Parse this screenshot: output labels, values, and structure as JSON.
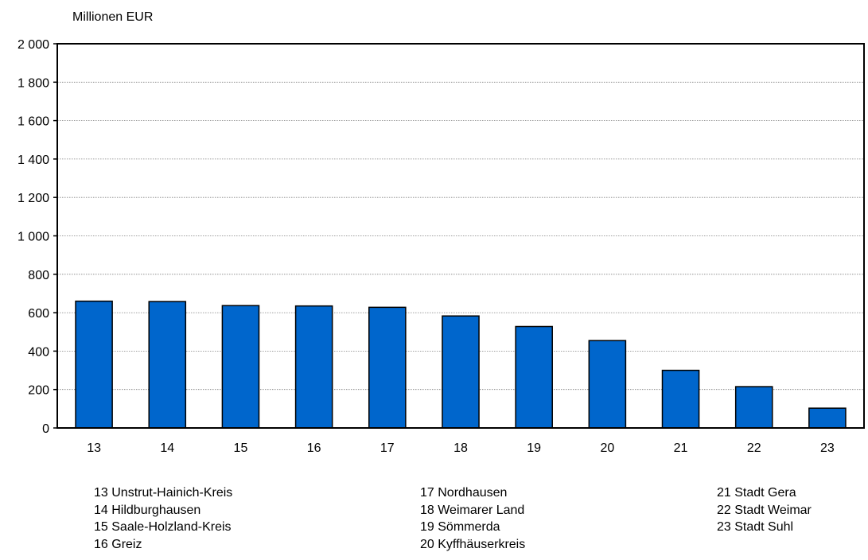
{
  "chart_data": {
    "type": "bar",
    "unit_label": "Millionen EUR",
    "categories": [
      "13",
      "14",
      "15",
      "16",
      "17",
      "18",
      "19",
      "20",
      "21",
      "22",
      "23"
    ],
    "values": [
      660,
      658,
      637,
      635,
      628,
      583,
      528,
      455,
      300,
      215,
      103
    ],
    "ylim": [
      0,
      2000
    ],
    "yticks": [
      0,
      200,
      400,
      600,
      800,
      1000,
      1200,
      1400,
      1600,
      1800,
      2000
    ],
    "ytick_labels": [
      "0",
      "200",
      "400",
      "600",
      "800",
      "1 000",
      "1 200",
      "1 400",
      "1 600",
      "1 800",
      "2 000"
    ],
    "grid": true,
    "bar_color": "#0066CC",
    "bar_outline": "#000000"
  },
  "legend": {
    "col1": [
      "13 Unstrut-Hainich-Kreis",
      "14 Hildburghausen",
      "15 Saale-Holzland-Kreis",
      "16 Greiz"
    ],
    "col2": [
      "17 Nordhausen",
      "18 Weimarer Land",
      "19 Sömmerda",
      "20 Kyffhäuserkreis"
    ],
    "col3": [
      "21 Stadt Gera",
      "22 Stadt Weimar",
      "23 Stadt Suhl"
    ]
  }
}
